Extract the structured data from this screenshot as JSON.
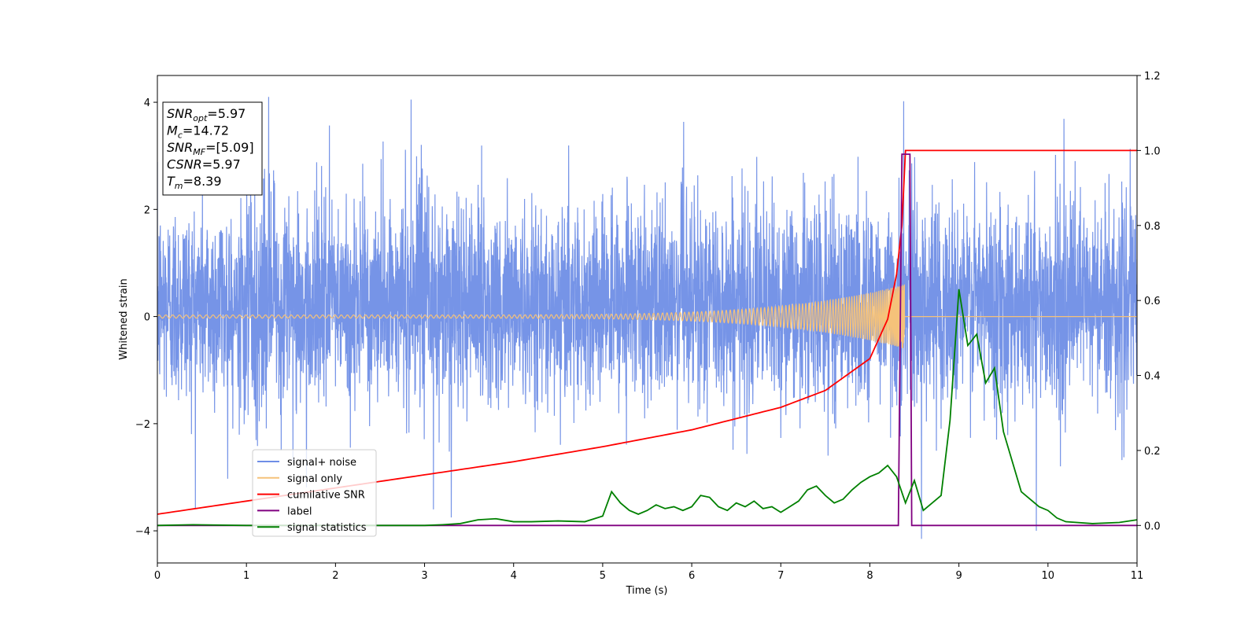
{
  "chart_data": {
    "type": "line",
    "xlabel": "Time (s)",
    "ylabel_left": "Whitened strain",
    "ylabel_right": "",
    "xlim": [
      0,
      11
    ],
    "ylim_left": [
      -4.6,
      4.5
    ],
    "ylim_right": [
      -0.1,
      1.2
    ],
    "x_ticks": [
      "0",
      "1",
      "2",
      "3",
      "4",
      "5",
      "6",
      "7",
      "8",
      "9",
      "10",
      "11"
    ],
    "y_ticks_left": [
      "−4",
      "−2",
      "0",
      "2",
      "4"
    ],
    "y_ticks_right": [
      "0.0",
      "0.2",
      "0.4",
      "0.6",
      "0.8",
      "1.0",
      "1.2"
    ],
    "grid": false,
    "legend_position": "lower-left",
    "annotation": {
      "lines": [
        {
          "base": "SNR",
          "sub": "opt",
          "value": "=5.97"
        },
        {
          "base": "M",
          "sub": "c",
          "value": "=14.72"
        },
        {
          "base": "SNR",
          "sub": "MF",
          "value": "=[5.09]"
        },
        {
          "base": "CSNR",
          "sub": "",
          "value": "=5.97"
        },
        {
          "base": "T",
          "sub": "m",
          "value": "=8.39"
        }
      ]
    },
    "series": [
      {
        "name": "signal+ noise",
        "axis": "left",
        "color": "#6f8ee6",
        "kind": "noise",
        "x_range": [
          0,
          11
        ],
        "typical_range": [
          -2.7,
          3.2
        ],
        "extremes": [
          {
            "x": 1.25,
            "y": 4.1
          },
          {
            "x": 2.85,
            "y": 4.05
          },
          {
            "x": 8.38,
            "y": 4.02
          },
          {
            "x": 8.58,
            "y": -4.15
          },
          {
            "x": 9.87,
            "y": -4.0
          },
          {
            "x": 3.3,
            "y": -3.75
          },
          {
            "x": 3.1,
            "y": -3.6
          }
        ]
      },
      {
        "name": "signal only",
        "axis": "left",
        "color": "#f5c27a",
        "kind": "chirp",
        "x_range": [
          0,
          8.39
        ],
        "amplitude_start": 0.03,
        "amplitude_end": 0.6,
        "end_time": 8.39
      },
      {
        "name": "cumilative SNR",
        "axis": "right",
        "color": "#ff0000",
        "x": [
          0,
          1,
          2,
          3,
          4,
          5,
          6,
          7,
          7.5,
          8,
          8.2,
          8.3,
          8.36,
          8.4,
          11
        ],
        "y": [
          0.03,
          0.065,
          0.1,
          0.135,
          0.17,
          0.21,
          0.255,
          0.315,
          0.36,
          0.445,
          0.55,
          0.67,
          0.8,
          1.0,
          1.0
        ]
      },
      {
        "name": "label",
        "axis": "right",
        "color": "#800080",
        "x": [
          0,
          8.32,
          8.36,
          8.45,
          8.47,
          11
        ],
        "y": [
          0,
          0,
          0.99,
          0.99,
          0,
          0
        ]
      },
      {
        "name": "signal statistics",
        "axis": "right",
        "color": "#008000",
        "x": [
          0,
          0.4,
          1,
          2,
          3,
          3.2,
          3.4,
          3.6,
          3.8,
          4,
          4.2,
          4.5,
          4.8,
          5,
          5.1,
          5.2,
          5.3,
          5.4,
          5.5,
          5.6,
          5.7,
          5.8,
          5.9,
          6,
          6.1,
          6.2,
          6.3,
          6.4,
          6.5,
          6.6,
          6.7,
          6.8,
          6.9,
          7,
          7.1,
          7.2,
          7.3,
          7.4,
          7.5,
          7.6,
          7.7,
          7.8,
          7.9,
          8,
          8.1,
          8.2,
          8.3,
          8.4,
          8.5,
          8.6,
          8.7,
          8.8,
          8.9,
          9,
          9.1,
          9.2,
          9.3,
          9.4,
          9.5,
          9.6,
          9.7,
          9.8,
          9.9,
          10,
          10.1,
          10.2,
          10.5,
          10.8,
          11
        ],
        "y": [
          0,
          0.002,
          0,
          0,
          0,
          0.002,
          0.005,
          0.015,
          0.018,
          0.01,
          0.01,
          0.012,
          0.01,
          0.025,
          0.09,
          0.06,
          0.04,
          0.03,
          0.04,
          0.055,
          0.045,
          0.05,
          0.04,
          0.05,
          0.08,
          0.075,
          0.05,
          0.04,
          0.06,
          0.05,
          0.065,
          0.045,
          0.05,
          0.035,
          0.05,
          0.065,
          0.095,
          0.105,
          0.08,
          0.06,
          0.07,
          0.095,
          0.115,
          0.13,
          0.14,
          0.16,
          0.13,
          0.06,
          0.12,
          0.04,
          0.06,
          0.08,
          0.28,
          0.63,
          0.48,
          0.51,
          0.38,
          0.42,
          0.25,
          0.17,
          0.09,
          0.07,
          0.05,
          0.04,
          0.02,
          0.01,
          0.005,
          0.008,
          0.015
        ]
      }
    ]
  }
}
